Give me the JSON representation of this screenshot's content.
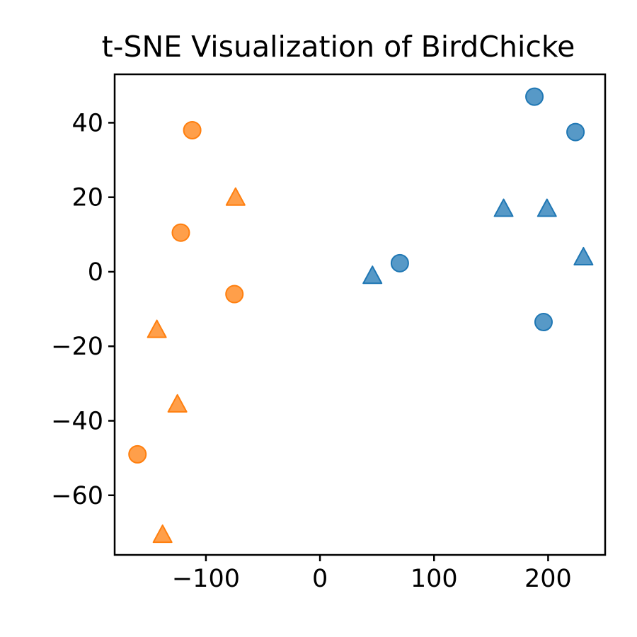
{
  "chart_data": {
    "type": "scatter",
    "title": "t-SNE Visualization of BirdChicke",
    "xlabel": "",
    "ylabel": "",
    "xlim": [
      -180,
      250
    ],
    "ylim": [
      -76,
      53
    ],
    "xticks": [
      -100,
      0,
      100,
      200
    ],
    "yticks": [
      40,
      20,
      0,
      -20,
      -40,
      -60
    ],
    "xtick_labels": [
      "−100",
      "0",
      "100",
      "200"
    ],
    "ytick_labels": [
      "40",
      "20",
      "0",
      "−20",
      "−40",
      "−60"
    ],
    "grid": false,
    "legend": false,
    "series": [
      {
        "color": "#1f77b4",
        "marker": "circle",
        "points": [
          {
            "x": 188,
            "y": 47
          },
          {
            "x": 224,
            "y": 37.5
          },
          {
            "x": 70,
            "y": 2.3
          },
          {
            "x": 196,
            "y": -13.5
          }
        ]
      },
      {
        "color": "#1f77b4",
        "marker": "triangle",
        "points": [
          {
            "x": 161,
            "y": 17
          },
          {
            "x": 199,
            "y": 17
          },
          {
            "x": 231,
            "y": 4
          },
          {
            "x": 46,
            "y": -1
          }
        ]
      },
      {
        "color": "#ff7f0e",
        "marker": "circle",
        "points": [
          {
            "x": -112,
            "y": 38
          },
          {
            "x": -122,
            "y": 10.5
          },
          {
            "x": -75,
            "y": -6
          },
          {
            "x": -160,
            "y": -49
          }
        ]
      },
      {
        "color": "#ff7f0e",
        "marker": "triangle",
        "points": [
          {
            "x": -74,
            "y": 20
          },
          {
            "x": -143,
            "y": -15.5
          },
          {
            "x": -125,
            "y": -35.5
          },
          {
            "x": -138,
            "y": -70.5
          }
        ]
      }
    ]
  }
}
